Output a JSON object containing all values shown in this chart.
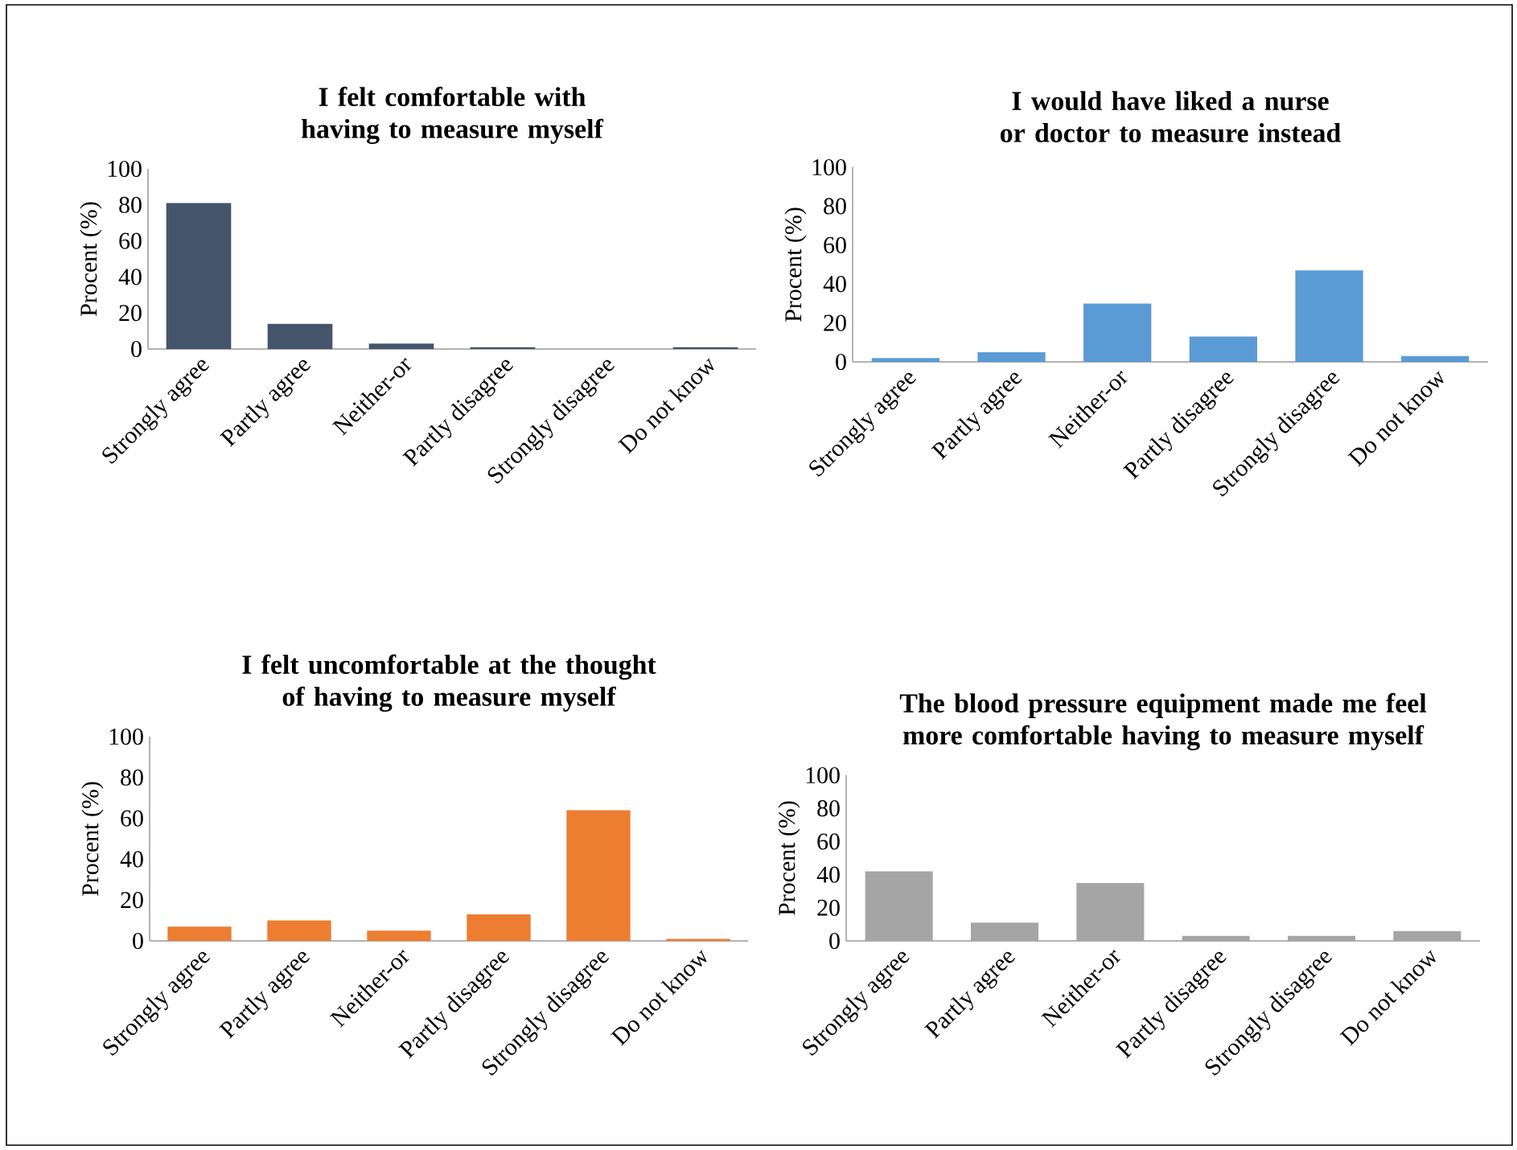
{
  "chart_data": [
    {
      "type": "bar",
      "title": "I felt comfortable with having to measure myself",
      "ylabel": "Procent (%)",
      "categories": [
        "Strongly agree",
        "Partly agree",
        "Neither-or",
        "Partly disagree",
        "Strongly disagree",
        "Do not know"
      ],
      "values": [
        81,
        14,
        3,
        1,
        0,
        1
      ],
      "color": "#44546a",
      "ylim": [
        0,
        100
      ],
      "yticks": [
        0,
        20,
        40,
        60,
        80,
        100
      ]
    },
    {
      "type": "bar",
      "title": "I would have liked a nurse or doctor to measure instead",
      "ylabel": "Procent (%)",
      "categories": [
        "Strongly agree",
        "Partly agree",
        "Neither-or",
        "Partly disagree",
        "Strongly disagree",
        "Do not know"
      ],
      "values": [
        2,
        5,
        30,
        13,
        47,
        3
      ],
      "color": "#5b9bd5",
      "ylim": [
        0,
        100
      ],
      "yticks": [
        0,
        20,
        40,
        60,
        80,
        100
      ]
    },
    {
      "type": "bar",
      "title": "I felt uncomfortable at the thought of having to measure myself",
      "ylabel": "Procent (%)",
      "categories": [
        "Strongly agree",
        "Partly agree",
        "Neither-or",
        "Partly disagree",
        "Strongly disagree",
        "Do not know"
      ],
      "values": [
        7,
        10,
        5,
        13,
        64,
        1
      ],
      "color": "#ed7d31",
      "ylim": [
        0,
        100
      ],
      "yticks": [
        0,
        20,
        40,
        60,
        80,
        100
      ]
    },
    {
      "type": "bar",
      "title": "The blood pressure equipment made me feel more comfortable having to measure myself",
      "ylabel": "Procent (%)",
      "categories": [
        "Strongly agree",
        "Partly agree",
        "Neither-or",
        "Partly disagree",
        "Strongly disagree",
        "Do not know"
      ],
      "values": [
        42,
        11,
        35,
        3,
        3,
        6
      ],
      "color": "#a5a5a5",
      "ylim": [
        0,
        100
      ],
      "yticks": [
        0,
        20,
        40,
        60,
        80,
        100
      ]
    }
  ]
}
